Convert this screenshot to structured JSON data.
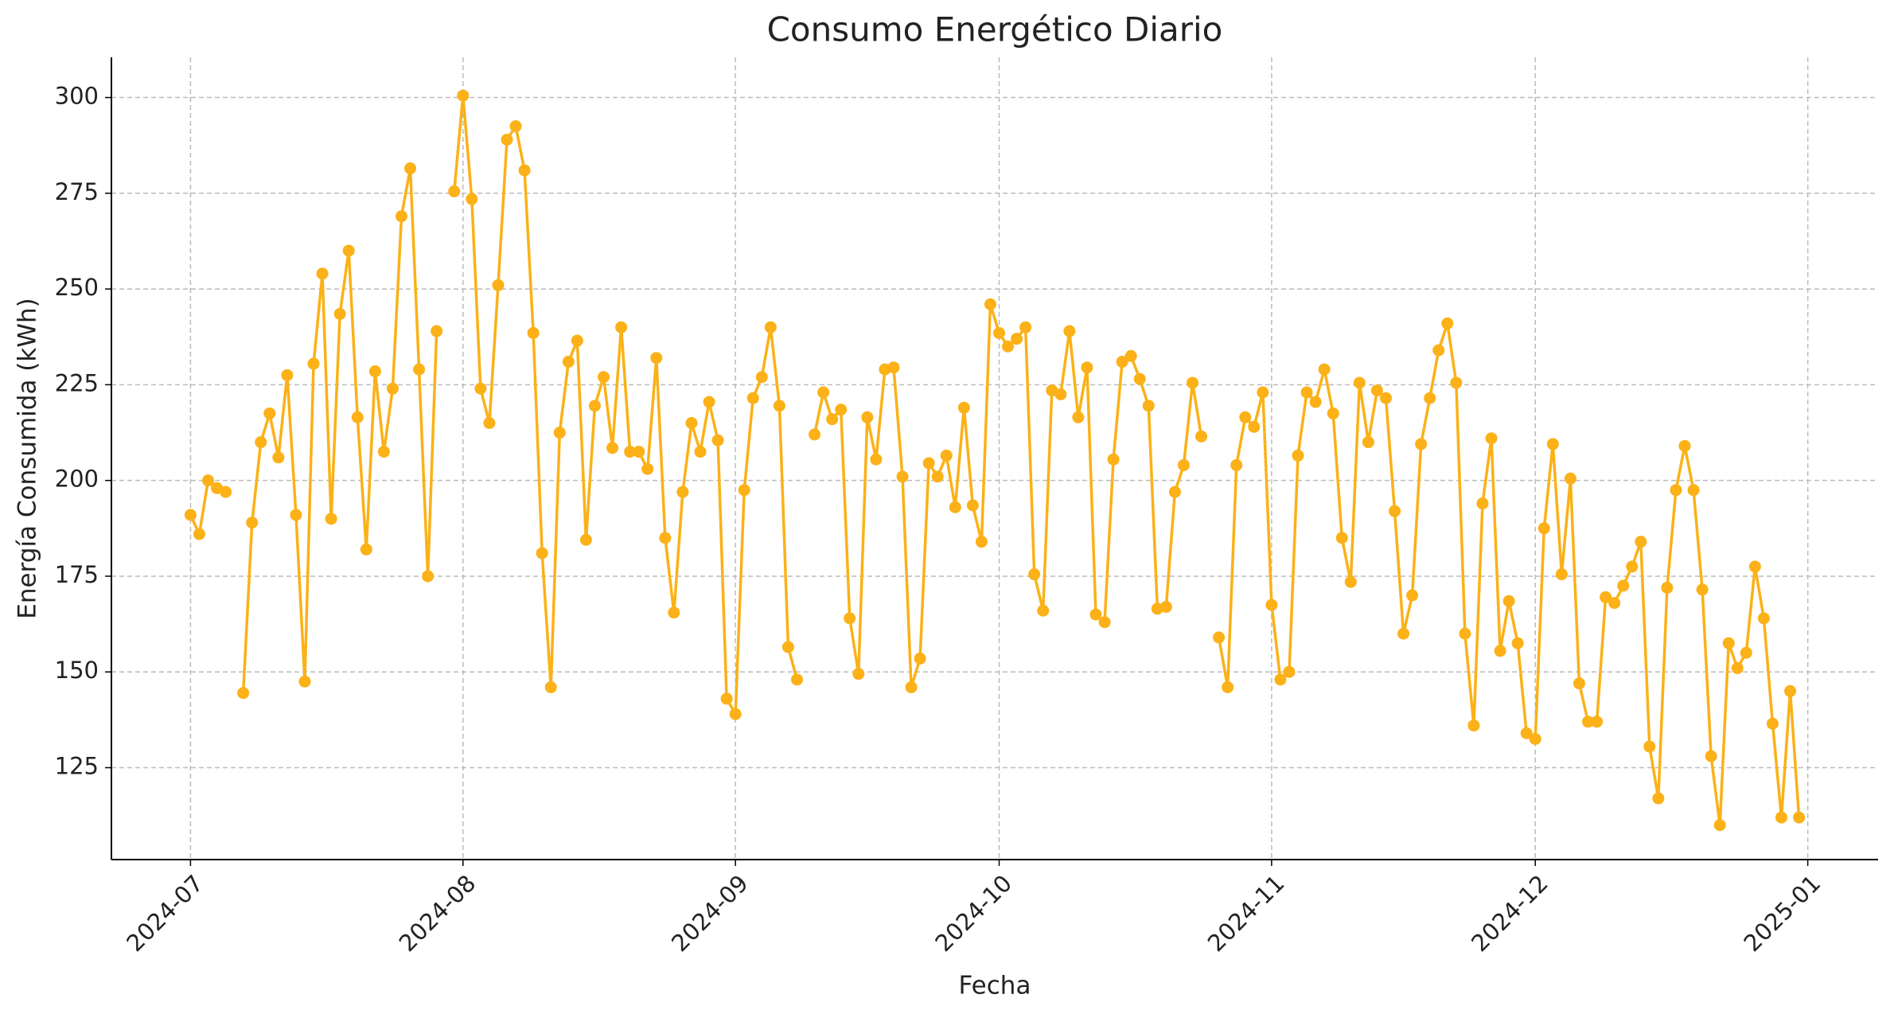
{
  "chart_data": {
    "type": "line",
    "title": "Consumo Energético Diario",
    "xlabel": "Fecha",
    "ylabel": "Energía Consumida (kWh)",
    "color": "#fbb117",
    "grid": true,
    "x": [
      "2024-07-01",
      "2024-07-02",
      "2024-07-03",
      "2024-07-04",
      "2024-07-05",
      "2024-07-06",
      "2024-07-07",
      "2024-07-08",
      "2024-07-09",
      "2024-07-10",
      "2024-07-11",
      "2024-07-12",
      "2024-07-13",
      "2024-07-14",
      "2024-07-15",
      "2024-07-16",
      "2024-07-17",
      "2024-07-18",
      "2024-07-19",
      "2024-07-20",
      "2024-07-21",
      "2024-07-22",
      "2024-07-23",
      "2024-07-24",
      "2024-07-25",
      "2024-07-26",
      "2024-07-27",
      "2024-07-28",
      "2024-07-29",
      "2024-07-30",
      "2024-07-31",
      "2024-08-01",
      "2024-08-02",
      "2024-08-03",
      "2024-08-04",
      "2024-08-05",
      "2024-08-06",
      "2024-08-07",
      "2024-08-08",
      "2024-08-09",
      "2024-08-10",
      "2024-08-11",
      "2024-08-12",
      "2024-08-13",
      "2024-08-14",
      "2024-08-15",
      "2024-08-16",
      "2024-08-17",
      "2024-08-18",
      "2024-08-19",
      "2024-08-20",
      "2024-08-21",
      "2024-08-22",
      "2024-08-23",
      "2024-08-24",
      "2024-08-25",
      "2024-08-26",
      "2024-08-27",
      "2024-08-28",
      "2024-08-29",
      "2024-08-30",
      "2024-08-31",
      "2024-09-01",
      "2024-09-02",
      "2024-09-03",
      "2024-09-04",
      "2024-09-05",
      "2024-09-06",
      "2024-09-07",
      "2024-09-08",
      "2024-09-09",
      "2024-09-10",
      "2024-09-11",
      "2024-09-12",
      "2024-09-13",
      "2024-09-14",
      "2024-09-15",
      "2024-09-16",
      "2024-09-17",
      "2024-09-18",
      "2024-09-19",
      "2024-09-20",
      "2024-09-21",
      "2024-09-22",
      "2024-09-23",
      "2024-09-24",
      "2024-09-25",
      "2024-09-26",
      "2024-09-27",
      "2024-09-28",
      "2024-09-29",
      "2024-09-30",
      "2024-10-01",
      "2024-10-02",
      "2024-10-03",
      "2024-10-04",
      "2024-10-05",
      "2024-10-06",
      "2024-10-07",
      "2024-10-08",
      "2024-10-09",
      "2024-10-10",
      "2024-10-11",
      "2024-10-12",
      "2024-10-13",
      "2024-10-14",
      "2024-10-15",
      "2024-10-16",
      "2024-10-17",
      "2024-10-18",
      "2024-10-19",
      "2024-10-20",
      "2024-10-21",
      "2024-10-22",
      "2024-10-23",
      "2024-10-24",
      "2024-10-25",
      "2024-10-26",
      "2024-10-27",
      "2024-10-28",
      "2024-10-29",
      "2024-10-30",
      "2024-10-31",
      "2024-11-01",
      "2024-11-02",
      "2024-11-03",
      "2024-11-04",
      "2024-11-05",
      "2024-11-06",
      "2024-11-07",
      "2024-11-08",
      "2024-11-09",
      "2024-11-10",
      "2024-11-11",
      "2024-11-12",
      "2024-11-13",
      "2024-11-14",
      "2024-11-15",
      "2024-11-16",
      "2024-11-17",
      "2024-11-18",
      "2024-11-19",
      "2024-11-20",
      "2024-11-21",
      "2024-11-22",
      "2024-11-23",
      "2024-11-24",
      "2024-11-25",
      "2024-11-26",
      "2024-11-27",
      "2024-11-28",
      "2024-11-29",
      "2024-11-30",
      "2024-12-01",
      "2024-12-02",
      "2024-12-03",
      "2024-12-04",
      "2024-12-05",
      "2024-12-06",
      "2024-12-07",
      "2024-12-08",
      "2024-12-09",
      "2024-12-10",
      "2024-12-11",
      "2024-12-12",
      "2024-12-13",
      "2024-12-14",
      "2024-12-15",
      "2024-12-16",
      "2024-12-17",
      "2024-12-18",
      "2024-12-19",
      "2024-12-20",
      "2024-12-21",
      "2024-12-22",
      "2024-12-23",
      "2024-12-24",
      "2024-12-25",
      "2024-12-26",
      "2024-12-27",
      "2024-12-28",
      "2024-12-29",
      "2024-12-30",
      "2024-12-31"
    ],
    "values": [
      191,
      186,
      200,
      198,
      197,
      null,
      144.5,
      189,
      210,
      217.5,
      206,
      227.5,
      191,
      147.5,
      230.5,
      254,
      190,
      243.5,
      260,
      216.5,
      182,
      228.5,
      207.5,
      224,
      269,
      281.5,
      229,
      175,
      239,
      null,
      275.5,
      300.5,
      273.5,
      224,
      215,
      251,
      289,
      292.5,
      281,
      238.5,
      181,
      146,
      212.5,
      231,
      236.5,
      184.5,
      219.5,
      227,
      208.5,
      240,
      207.5,
      207.5,
      203,
      232,
      185,
      165.5,
      197,
      215,
      207.5,
      220.5,
      210.5,
      143,
      139,
      197.5,
      221.5,
      227,
      240,
      219.5,
      156.5,
      148,
      null,
      212,
      223,
      216,
      218.5,
      164,
      149.5,
      216.5,
      205.5,
      229,
      229.5,
      201,
      146,
      153.5,
      204.5,
      201,
      206.5,
      193,
      219,
      193.5,
      184,
      246,
      238.5,
      235,
      237,
      240,
      175.5,
      166,
      223.5,
      222.5,
      239,
      216.5,
      229.5,
      165,
      163,
      205.5,
      231,
      232.5,
      226.5,
      219.5,
      166.5,
      167,
      197,
      204,
      225.5,
      211.5,
      null,
      159,
      146,
      204,
      216.5,
      214,
      223,
      167.5,
      148,
      150,
      206.5,
      223,
      220.5,
      229,
      217.5,
      185,
      173.5,
      225.5,
      210,
      223.5,
      221.5,
      192,
      160,
      170,
      209.5,
      221.5,
      234,
      241,
      225.5,
      160,
      136,
      194,
      211,
      155.5,
      168.5,
      157.5,
      134,
      132.5,
      187.5,
      209.5,
      175.5,
      200.5,
      147,
      137,
      137,
      169.5,
      168,
      172.5,
      177.5,
      184,
      130.5,
      117,
      172,
      197.5,
      209,
      197.5,
      171.5,
      128,
      110,
      157.5,
      151,
      155,
      177.5,
      164,
      136.5,
      112,
      145,
      112
    ],
    "xlim": [
      "2024-06-22",
      "2025-01-09"
    ],
    "xticks": [
      {
        "value": "2024-07-01",
        "label": "2024-07"
      },
      {
        "value": "2024-08-01",
        "label": "2024-08"
      },
      {
        "value": "2024-09-01",
        "label": "2024-09"
      },
      {
        "value": "2024-10-01",
        "label": "2024-10"
      },
      {
        "value": "2024-11-01",
        "label": "2024-11"
      },
      {
        "value": "2024-12-01",
        "label": "2024-12"
      },
      {
        "value": "2025-01-01",
        "label": "2025-01"
      }
    ],
    "ylim": [
      101,
      310.5
    ],
    "yticks": [
      125,
      150,
      175,
      200,
      225,
      250,
      275,
      300
    ]
  }
}
